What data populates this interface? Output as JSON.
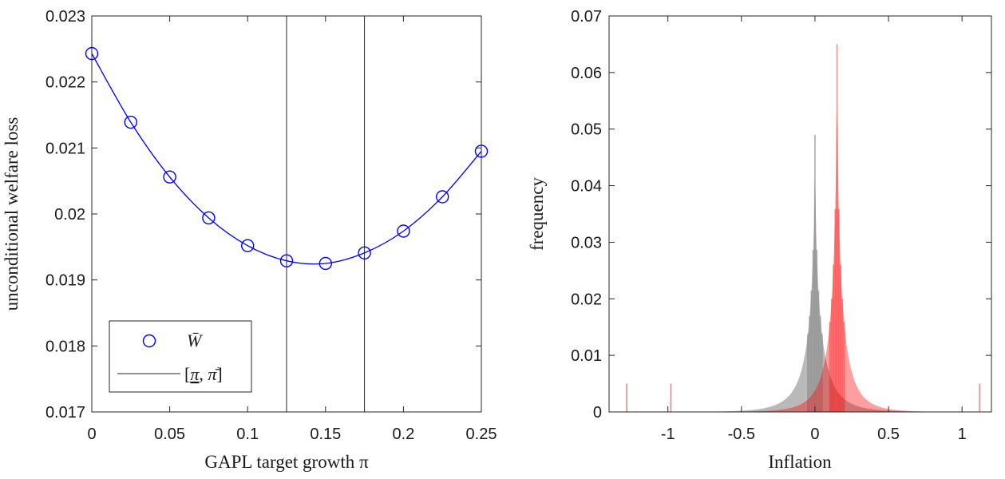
{
  "chart_data": [
    {
      "type": "line",
      "xlabel": "GAPL target growth π",
      "ylabel": "unconditional welfare loss",
      "xlim": [
        0,
        0.25
      ],
      "ylim": [
        0.017,
        0.023
      ],
      "xticks": [
        0,
        0.05,
        0.1,
        0.15,
        0.2,
        0.25
      ],
      "xtick_labels": [
        "0",
        "0.05",
        "0.1",
        "0.15",
        "0.2",
        "0.25"
      ],
      "yticks": [
        0.017,
        0.018,
        0.019,
        0.02,
        0.021,
        0.022,
        0.023
      ],
      "ytick_labels": [
        "0.017",
        "0.018",
        "0.019",
        "0.02",
        "0.021",
        "0.022",
        "0.023"
      ],
      "series": [
        {
          "name": "W̄",
          "color": "#0000ff",
          "marker": "circle",
          "x": [
            0,
            0.025,
            0.05,
            0.075,
            0.1,
            0.125,
            0.15,
            0.175,
            0.2,
            0.225,
            0.25
          ],
          "y": [
            0.02243,
            0.02139,
            0.02056,
            0.01994,
            0.01952,
            0.01929,
            0.01925,
            0.01941,
            0.01974,
            0.02026,
            0.02095
          ]
        }
      ],
      "vlines": {
        "name": "[π, π̄]",
        "color": "#262626",
        "x": [
          0.125,
          0.175
        ]
      },
      "legend": {
        "position": "bottom-left",
        "entries": [
          {
            "symbol": "W̄",
            "style": "marker"
          },
          {
            "symbol_open": "[",
            "symbol_lo": "π",
            "symbol_sep": ", ",
            "symbol_hi": "π̄",
            "symbol_close": "]",
            "style": "line"
          }
        ]
      },
      "grid": false
    },
    {
      "type": "histogram",
      "xlabel": "Inflation",
      "ylabel": "frequency",
      "xlim": [
        -1.4,
        1.2
      ],
      "ylim": [
        0,
        0.07
      ],
      "xticks": [
        -1,
        -0.5,
        0,
        0.5,
        1
      ],
      "xtick_labels": [
        "-1",
        "-0.5",
        "0",
        "0.5",
        "1"
      ],
      "yticks": [
        0,
        0.01,
        0.02,
        0.03,
        0.04,
        0.05,
        0.06,
        0.07
      ],
      "ytick_labels": [
        "0",
        "0.01",
        "0.02",
        "0.03",
        "0.04",
        "0.05",
        "0.06",
        "0.07"
      ],
      "series": [
        {
          "color": "#808080",
          "center": 0.0,
          "peak": 0.049,
          "spread": 0.13
        },
        {
          "color": "#ff0000",
          "center": 0.15,
          "peak": 0.065,
          "spread": 0.11
        }
      ],
      "outlier_ticks": [
        {
          "x": -1.28,
          "value": 0.005
        },
        {
          "x": -0.98,
          "value": 0.005
        },
        {
          "x": 1.12,
          "value": 0.005
        }
      ],
      "grid": false
    }
  ]
}
